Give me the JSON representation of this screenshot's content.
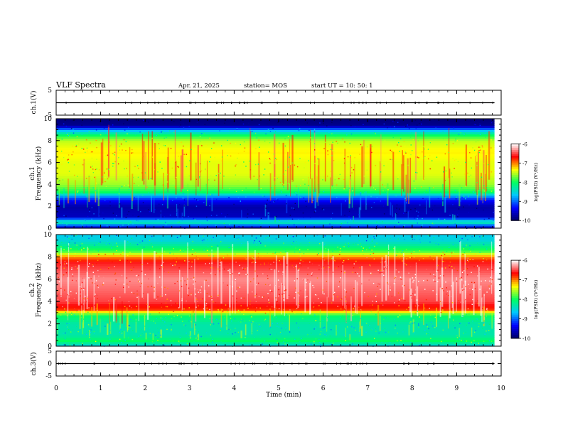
{
  "header": {
    "title": "VLF Spectra",
    "date": "Apr. 21, 2025",
    "station": "station= MOS",
    "start": "start  UT =   10: 50: 1"
  },
  "chart_data": [
    {
      "type": "line",
      "panel": "ch.1 waveform",
      "ylabel": "ch.1(V)",
      "ylim": [
        -5,
        5
      ],
      "yticks": [
        5,
        -5
      ],
      "series": [
        {
          "x": [
            0,
            9.85
          ],
          "values": [
            0.0,
            0.0
          ]
        }
      ]
    },
    {
      "type": "heatmap",
      "panel": "ch.1 spectrogram",
      "ylabel": "ch.1\nFrequency (kHz)",
      "ylim": [
        0,
        10
      ],
      "yticks": [
        0,
        2,
        4,
        6,
        8,
        10
      ],
      "x_extent_min": [
        0,
        9.85
      ],
      "frequency_profile_kHz": [
        0.0,
        0.5,
        0.8,
        1.0,
        2.0,
        2.6,
        3.0,
        3.3,
        4.0,
        5.0,
        6.0,
        7.0,
        8.0,
        8.5,
        9.0,
        9.4,
        10.0
      ],
      "level_log10_PSD": [
        -9.8,
        -8.4,
        -8.6,
        -9.6,
        -9.7,
        -9.3,
        -8.7,
        -8.0,
        -7.6,
        -7.4,
        -7.4,
        -7.3,
        -7.5,
        -8.0,
        -8.8,
        -9.8,
        -9.9
      ],
      "colorbar": {
        "label": "log(PSD) (V²/Hz)",
        "range": [
          -10,
          -6
        ],
        "ticks": [
          -6,
          -7,
          -8,
          -9,
          -10
        ]
      }
    },
    {
      "type": "heatmap",
      "panel": "ch.2 spectrogram",
      "ylabel": "ch.2\nFrequency (kHz)",
      "ylim": [
        0,
        10
      ],
      "yticks": [
        0,
        2,
        4,
        6,
        8,
        10
      ],
      "x_extent_min": [
        0,
        9.85
      ],
      "frequency_profile_kHz": [
        0.0,
        0.5,
        1.0,
        2.0,
        2.8,
        3.3,
        4.0,
        6.0,
        7.5,
        8.0,
        8.5,
        9.0,
        9.5,
        10.0
      ],
      "level_log10_PSD": [
        -8.6,
        -8.0,
        -8.3,
        -8.3,
        -8.0,
        -6.8,
        -6.5,
        -6.3,
        -6.6,
        -7.0,
        -7.8,
        -8.2,
        -8.5,
        -8.6
      ],
      "colorbar": {
        "label": "log(PSD) (V²/Hz)",
        "range": [
          -10,
          -6
        ],
        "ticks": [
          -6,
          -7,
          -8,
          -9,
          -10
        ]
      }
    },
    {
      "type": "line",
      "panel": "ch.3 waveform",
      "ylabel": "ch.3(V)",
      "xlabel": "Time  (min)",
      "xlim": [
        0,
        10
      ],
      "xticks": [
        0,
        1,
        2,
        3,
        4,
        5,
        6,
        7,
        8,
        9,
        10
      ],
      "ylim": [
        -5,
        5
      ],
      "yticks": [
        5,
        0,
        -5
      ],
      "series": [
        {
          "x": [
            0,
            9.85
          ],
          "values": [
            0.0,
            0.0
          ]
        }
      ]
    }
  ],
  "colors": {
    "colormap": [
      "#000060",
      "#0000ff",
      "#00c8ff",
      "#00ff60",
      "#ffff00",
      "#ff0000",
      "#ffffff"
    ]
  }
}
